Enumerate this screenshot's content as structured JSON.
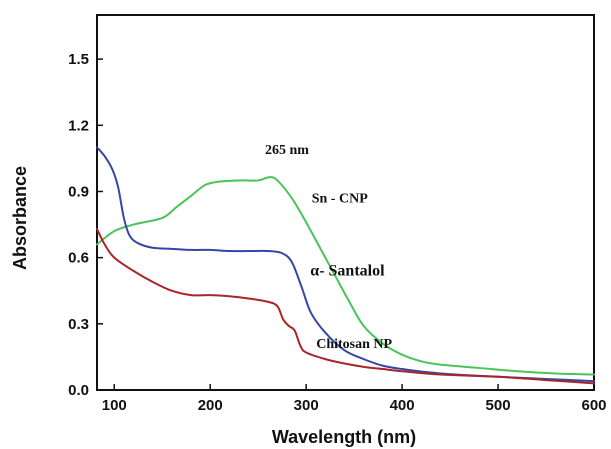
{
  "chart_data": {
    "type": "line",
    "xlabel": "Wavelength (nm)",
    "ylabel": "Absorbance",
    "xlim": [
      82,
      600
    ],
    "ylim": [
      0.0,
      1.7
    ],
    "xticks": [
      100,
      200,
      300,
      400,
      500,
      600
    ],
    "yticks": [
      0.0,
      0.3,
      0.6,
      0.9,
      1.2,
      1.5
    ],
    "ytick_labels": [
      "0.0",
      "0.3",
      "0.6",
      "0.9",
      "1.2",
      "1.5"
    ],
    "grid": false,
    "series": [
      {
        "name": "Sn - CNP",
        "color": "#4cc35a",
        "points": [
          [
            82,
            0.66
          ],
          [
            100,
            0.72
          ],
          [
            120,
            0.75
          ],
          [
            150,
            0.78
          ],
          [
            165,
            0.83
          ],
          [
            180,
            0.88
          ],
          [
            195,
            0.93
          ],
          [
            210,
            0.945
          ],
          [
            230,
            0.95
          ],
          [
            250,
            0.95
          ],
          [
            262,
            0.965
          ],
          [
            270,
            0.95
          ],
          [
            285,
            0.87
          ],
          [
            300,
            0.76
          ],
          [
            315,
            0.64
          ],
          [
            330,
            0.52
          ],
          [
            345,
            0.4
          ],
          [
            360,
            0.29
          ],
          [
            380,
            0.21
          ],
          [
            400,
            0.16
          ],
          [
            420,
            0.13
          ],
          [
            440,
            0.115
          ],
          [
            480,
            0.1
          ],
          [
            520,
            0.085
          ],
          [
            560,
            0.075
          ],
          [
            600,
            0.07
          ]
        ]
      },
      {
        "name": "α- Santalol",
        "color": "#3546a8",
        "points": [
          [
            82,
            1.1
          ],
          [
            90,
            1.06
          ],
          [
            98,
            1.0
          ],
          [
            104,
            0.92
          ],
          [
            110,
            0.78
          ],
          [
            116,
            0.7
          ],
          [
            125,
            0.665
          ],
          [
            140,
            0.645
          ],
          [
            160,
            0.64
          ],
          [
            180,
            0.635
          ],
          [
            200,
            0.635
          ],
          [
            220,
            0.63
          ],
          [
            240,
            0.63
          ],
          [
            260,
            0.63
          ],
          [
            275,
            0.62
          ],
          [
            285,
            0.58
          ],
          [
            295,
            0.47
          ],
          [
            305,
            0.35
          ],
          [
            320,
            0.26
          ],
          [
            340,
            0.18
          ],
          [
            360,
            0.14
          ],
          [
            380,
            0.11
          ],
          [
            400,
            0.095
          ],
          [
            440,
            0.075
          ],
          [
            500,
            0.06
          ],
          [
            550,
            0.05
          ],
          [
            600,
            0.04
          ]
        ]
      },
      {
        "name": "Chitosan NP",
        "color": "#a8262a",
        "points": [
          [
            82,
            0.73
          ],
          [
            90,
            0.66
          ],
          [
            100,
            0.6
          ],
          [
            120,
            0.54
          ],
          [
            140,
            0.49
          ],
          [
            160,
            0.45
          ],
          [
            180,
            0.43
          ],
          [
            200,
            0.43
          ],
          [
            220,
            0.425
          ],
          [
            240,
            0.415
          ],
          [
            260,
            0.4
          ],
          [
            270,
            0.38
          ],
          [
            276,
            0.32
          ],
          [
            282,
            0.29
          ],
          [
            288,
            0.27
          ],
          [
            294,
            0.2
          ],
          [
            300,
            0.17
          ],
          [
            320,
            0.14
          ],
          [
            340,
            0.12
          ],
          [
            360,
            0.105
          ],
          [
            380,
            0.095
          ],
          [
            400,
            0.085
          ],
          [
            440,
            0.07
          ],
          [
            500,
            0.06
          ],
          [
            550,
            0.045
          ],
          [
            600,
            0.03
          ]
        ]
      }
    ],
    "annotations": [
      {
        "text": "265 nm",
        "x": 280,
        "y": 1.07,
        "size": 14
      },
      {
        "text": "Sn - CNP",
        "x": 335,
        "y": 0.85,
        "size": 14
      },
      {
        "text": "α- Santalol",
        "x": 343,
        "y": 0.52,
        "size": 16
      },
      {
        "text": "Chitosan NP",
        "x": 350,
        "y": 0.19,
        "size": 14
      }
    ]
  }
}
